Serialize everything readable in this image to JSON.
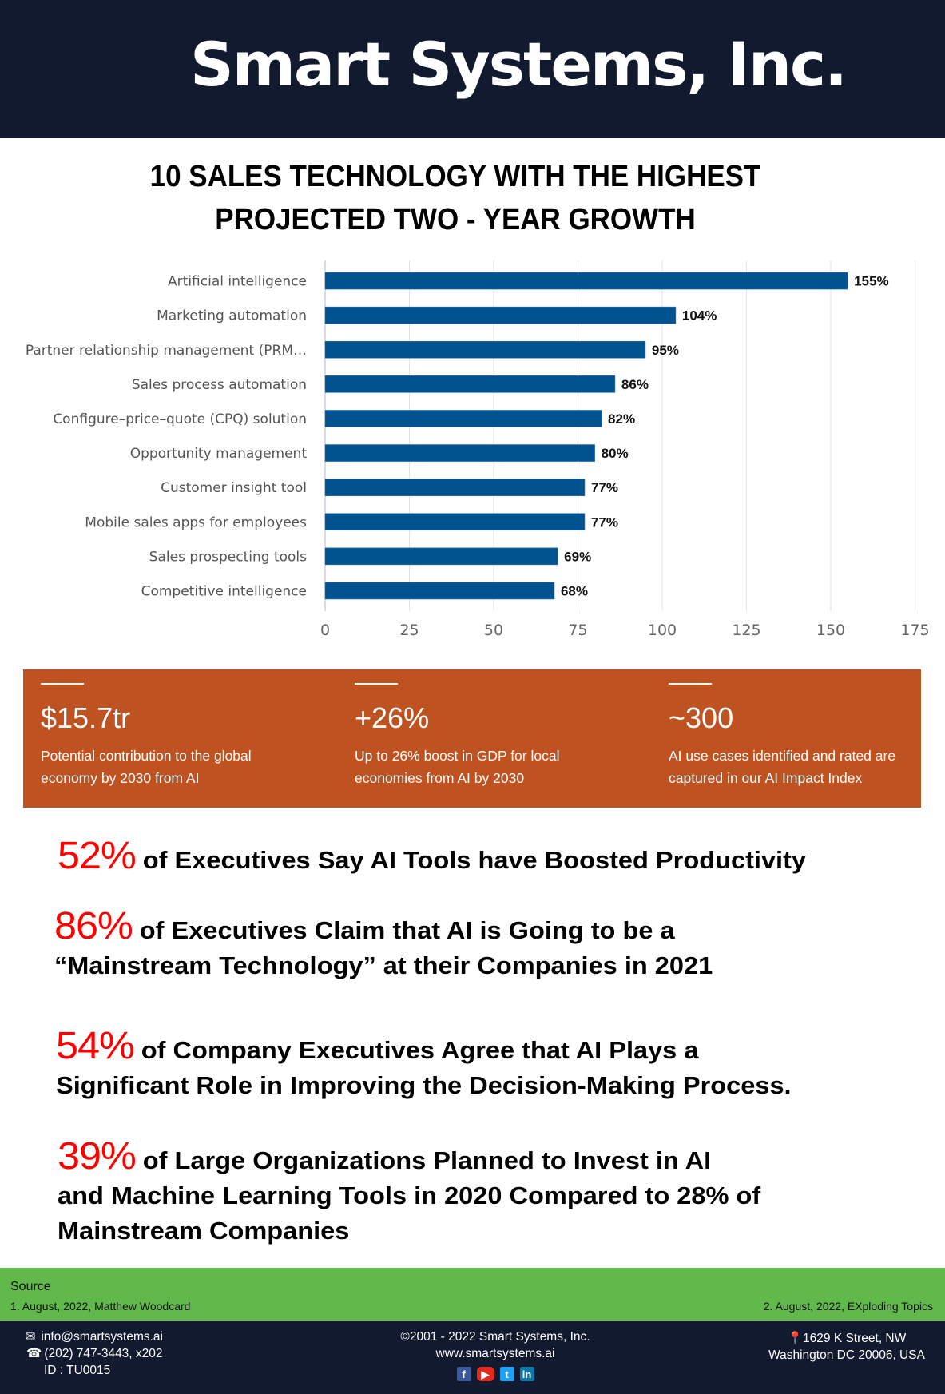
{
  "header": {
    "brand": "Smart Systems, Inc."
  },
  "chart_title": {
    "line1": "10 SALES TECHNOLOGY WITH THE HIGHEST",
    "line2": "PROJECTED TWO - YEAR GROWTH"
  },
  "chart_data": {
    "type": "bar",
    "orientation": "horizontal",
    "title": "10 SALES TECHNOLOGY WITH THE HIGHEST PROJECTED TWO - YEAR GROWTH",
    "categories": [
      "Artificial intelligence",
      "Marketing automation",
      "Partner relationship management (PRM…",
      "Sales process automation",
      "Configure–price–quote (CPQ) solution",
      "Opportunity management",
      "Customer insight tool",
      "Mobile sales apps for employees",
      "Sales prospecting tools",
      "Competitive intelligence"
    ],
    "values": [
      155,
      104,
      95,
      86,
      82,
      80,
      77,
      77,
      69,
      68
    ],
    "data_labels": [
      "155%",
      "104%",
      "95%",
      "86%",
      "82%",
      "80%",
      "77%",
      "77%",
      "69%",
      "68%"
    ],
    "xlim": [
      0,
      175
    ],
    "x_ticks": [
      0,
      25,
      50,
      75,
      100,
      125,
      150,
      175
    ],
    "xlabel": "",
    "ylabel": "",
    "grid": true,
    "bar_color": "#00538e",
    "legend": "none"
  },
  "stats": [
    {
      "value": "$15.7tr",
      "description": "Potential contribution to the global economy by 2030 from AI"
    },
    {
      "value": "+26%",
      "description": "Up to 26% boost in GDP for local economies from AI by 2030"
    },
    {
      "value": "~300",
      "description": "AI use cases identified and rated are captured in our AI Impact Index"
    }
  ],
  "facts": [
    {
      "percent": "52%",
      "lines": [
        "of Executives Say AI Tools have Boosted Productivity"
      ]
    },
    {
      "percent": "86%",
      "lines": [
        "of Executives Claim that AI is Going to be a",
        "“Mainstream Technology” at their Companies in 2021"
      ]
    },
    {
      "percent": "54%",
      "lines": [
        "of Company Executives Agree that AI Plays a",
        "Significant Role in Improving the Decision-Making Process."
      ]
    },
    {
      "percent": "39%",
      "lines": [
        "of Large Organizations Planned to Invest in AI",
        "and Machine Learning Tools in 2020 Compared to 28% of",
        "Mainstream Companies"
      ]
    }
  ],
  "source": {
    "title": "Source",
    "items": [
      "1. August, 2022, Matthew Woodcard",
      "2. August, 2022, EXploding Topics"
    ]
  },
  "footer": {
    "email": "info@smartsystems.ai",
    "phone": "(202) 747-3443, x202",
    "id": "ID : TU0015",
    "copyright": "2001 - 2022 Smart Systems, Inc.",
    "website": "www.smartsystems.ai",
    "address_line1": "1629 K Street, NW",
    "address_line2": "Washington DC 20006, USA",
    "socials": [
      {
        "icon": "facebook-icon",
        "glyph": "f"
      },
      {
        "icon": "youtube-icon",
        "glyph": "▶"
      },
      {
        "icon": "twitter-icon",
        "glyph": "t"
      },
      {
        "icon": "linkedin-icon",
        "glyph": "in"
      }
    ]
  },
  "colors": {
    "header_bg": "#111a2e",
    "bar": "#00538e",
    "stats_bg": "#bf5221",
    "highlight_red": "#ff0000",
    "source_bg": "#61b94c"
  }
}
